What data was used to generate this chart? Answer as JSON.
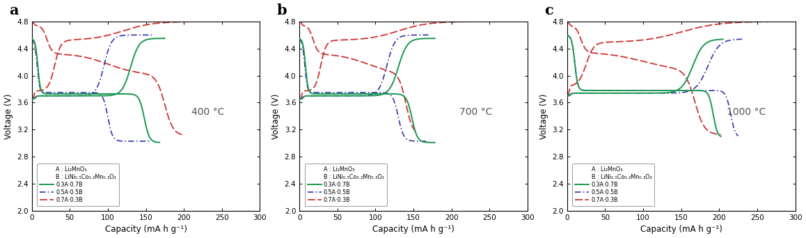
{
  "panels": [
    {
      "label": "a",
      "temperature": "400 °C",
      "xlim": [
        0,
        300
      ],
      "ylim": [
        2.0,
        4.8
      ]
    },
    {
      "label": "b",
      "temperature": "700 °C",
      "xlim": [
        0,
        300
      ],
      "ylim": [
        2.0,
        4.8
      ]
    },
    {
      "label": "c",
      "temperature": "1000 °C",
      "xlim": [
        0,
        300
      ],
      "ylim": [
        2.0,
        4.8
      ]
    }
  ],
  "colors": {
    "green": "#1a9850",
    "navy": "#3333aa",
    "red": "#cc3333"
  },
  "legend_line1": "A : Li₂MnO₃",
  "legend_line2": "B : LiNi₀.₅Co₀.₂Mn₀.₃O₂",
  "legend_entries": [
    "0.3A·0.7B",
    "0.5A·0.5B",
    "0.7A·0.3B"
  ],
  "xlabel": "Capacity (mA h g⁻¹)",
  "ylabel": "Voltage (V)",
  "yticks": [
    2.0,
    2.4,
    2.8,
    3.2,
    3.6,
    4.0,
    4.4,
    4.8
  ],
  "xticks": [
    0,
    50,
    100,
    150,
    200,
    250,
    300
  ]
}
